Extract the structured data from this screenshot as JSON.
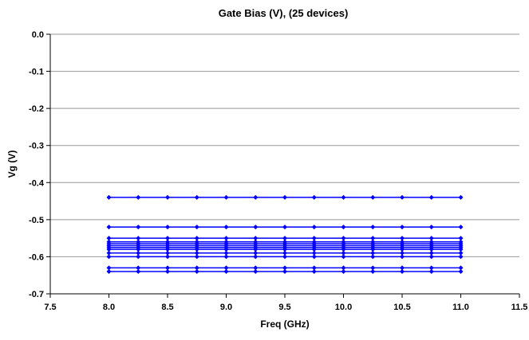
{
  "chart_data": {
    "type": "line",
    "title": "Gate Bias (V), (25 devices)",
    "xlabel": "Freq (GHz)",
    "ylabel": "Vg (V)",
    "xlim": [
      7.5,
      11.5
    ],
    "ylim": [
      -0.7,
      0.0
    ],
    "x_ticks": [
      "7.5",
      "8.0",
      "8.5",
      "9.0",
      "9.5",
      "10.0",
      "10.5",
      "11.0",
      "11.5"
    ],
    "y_ticks": [
      "0.0",
      "-0.1",
      "-0.2",
      "-0.3",
      "-0.4",
      "-0.5",
      "-0.6",
      "-0.7"
    ],
    "grid": "horizontal",
    "legend": "none",
    "series_color": "#0000ff",
    "x": [
      8.0,
      8.25,
      8.5,
      8.75,
      9.0,
      9.25,
      9.5,
      9.75,
      10.0,
      10.25,
      10.5,
      10.75,
      11.0
    ],
    "series": [
      {
        "values": [
          -0.44,
          -0.44,
          -0.44,
          -0.44,
          -0.44,
          -0.44,
          -0.44,
          -0.44,
          -0.44,
          -0.44,
          -0.44,
          -0.44,
          -0.44
        ]
      },
      {
        "values": [
          -0.52,
          -0.52,
          -0.52,
          -0.52,
          -0.52,
          -0.52,
          -0.52,
          -0.52,
          -0.52,
          -0.52,
          -0.52,
          -0.52,
          -0.52
        ]
      },
      {
        "values": [
          -0.55,
          -0.55,
          -0.55,
          -0.55,
          -0.55,
          -0.55,
          -0.55,
          -0.55,
          -0.55,
          -0.55,
          -0.55,
          -0.55,
          -0.55
        ]
      },
      {
        "values": [
          -0.56,
          -0.56,
          -0.56,
          -0.56,
          -0.56,
          -0.56,
          -0.56,
          -0.56,
          -0.56,
          -0.56,
          -0.56,
          -0.56,
          -0.56
        ]
      },
      {
        "values": [
          -0.565,
          -0.565,
          -0.565,
          -0.565,
          -0.565,
          -0.565,
          -0.565,
          -0.565,
          -0.565,
          -0.565,
          -0.565,
          -0.565,
          -0.565
        ]
      },
      {
        "values": [
          -0.57,
          -0.57,
          -0.57,
          -0.57,
          -0.57,
          -0.57,
          -0.57,
          -0.57,
          -0.57,
          -0.57,
          -0.57,
          -0.57,
          -0.57
        ]
      },
      {
        "values": [
          -0.575,
          -0.575,
          -0.575,
          -0.575,
          -0.575,
          -0.575,
          -0.575,
          -0.575,
          -0.575,
          -0.575,
          -0.575,
          -0.575,
          -0.575
        ]
      },
      {
        "values": [
          -0.58,
          -0.58,
          -0.58,
          -0.58,
          -0.58,
          -0.58,
          -0.58,
          -0.58,
          -0.58,
          -0.58,
          -0.58,
          -0.58,
          -0.58
        ]
      },
      {
        "values": [
          -0.59,
          -0.59,
          -0.59,
          -0.59,
          -0.59,
          -0.59,
          -0.59,
          -0.59,
          -0.59,
          -0.59,
          -0.59,
          -0.59,
          -0.59
        ]
      },
      {
        "values": [
          -0.6,
          -0.6,
          -0.6,
          -0.6,
          -0.6,
          -0.6,
          -0.6,
          -0.6,
          -0.6,
          -0.6,
          -0.6,
          -0.6,
          -0.6
        ]
      },
      {
        "values": [
          -0.63,
          -0.63,
          -0.63,
          -0.63,
          -0.63,
          -0.63,
          -0.63,
          -0.63,
          -0.63,
          -0.63,
          -0.63,
          -0.63,
          -0.63
        ]
      },
      {
        "values": [
          -0.64,
          -0.64,
          -0.64,
          -0.64,
          -0.64,
          -0.64,
          -0.64,
          -0.64,
          -0.64,
          -0.64,
          -0.64,
          -0.64,
          -0.64
        ]
      }
    ]
  }
}
